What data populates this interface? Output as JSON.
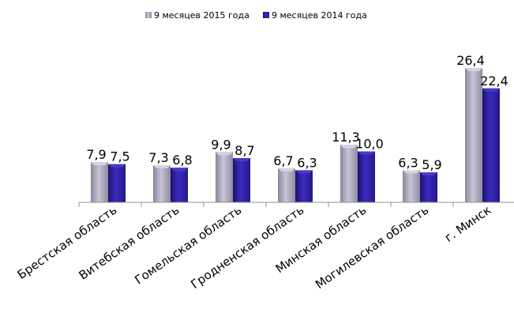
{
  "chart_data": {
    "type": "bar",
    "categories": [
      "Брестская область",
      "Витебская область",
      "Гомельская область",
      "Гродненская область",
      "Минская область",
      "Могилевская область",
      "г. Минск"
    ],
    "series": [
      {
        "name": "9 месяцев 2015 года",
        "values": [
          7.9,
          7.3,
          9.9,
          6.7,
          11.3,
          6.3,
          26.4
        ],
        "labels": [
          "7,9",
          "7,3",
          "9,9",
          "6,7",
          "11,3",
          "6,3",
          "26,4"
        ],
        "color": "#a7a2b8"
      },
      {
        "name": "9 месяцев 2014 года",
        "values": [
          7.5,
          6.8,
          8.7,
          6.3,
          10.0,
          5.9,
          22.4
        ],
        "labels": [
          "7,5",
          "6,8",
          "8,7",
          "6,3",
          "10,0",
          "5,9",
          "22,4"
        ],
        "color": "#2e1fa0"
      }
    ],
    "title": "",
    "xlabel": "",
    "ylabel": "",
    "ylim": [
      0,
      30
    ],
    "grid": false,
    "legend_position": "top"
  }
}
